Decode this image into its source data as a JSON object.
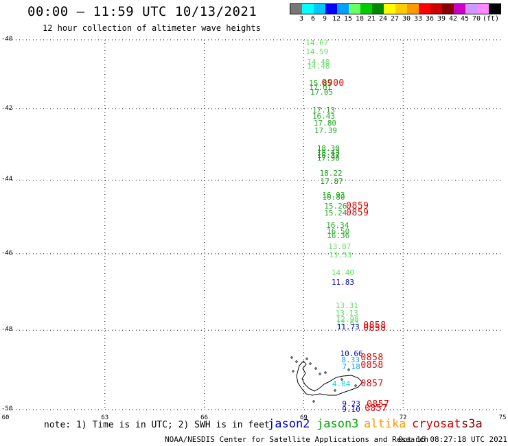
{
  "header": {
    "title": "00:00 – 11:59 UTC 10/13/2021",
    "subtitle": "12 hour collection of altimeter wave heights"
  },
  "legend": {
    "colors": [
      "#777777",
      "#00ffff",
      "#00c8ff",
      "#0000ff",
      "#00a0ff",
      "#66ff66",
      "#00cc00",
      "#008800",
      "#ffff00",
      "#ffcc00",
      "#ff9900",
      "#ff0000",
      "#cc0000",
      "#880000",
      "#cc00cc",
      "#cc99ff",
      "#ff88ff",
      "#000000"
    ],
    "labels": [
      "3",
      "6",
      "9",
      "12",
      "15",
      "18",
      "21",
      "24",
      "27",
      "30",
      "33",
      "36",
      "39",
      "42",
      "45",
      "70",
      "(ft)"
    ]
  },
  "axes": {
    "y_labels": [
      "-40",
      "-42",
      "-44",
      "-46",
      "-48",
      "-50"
    ],
    "x_labels": [
      "60",
      "63",
      "66",
      "69",
      "72",
      "75"
    ]
  },
  "observations": [
    {
      "v": "14.67",
      "lon": 69.06,
      "lat": -40.08,
      "c": "#66dd66"
    },
    {
      "v": "14.59",
      "lon": 69.06,
      "lat": -40.35,
      "c": "#66dd66"
    },
    {
      "v": "14.40",
      "lon": 69.1,
      "lat": -40.65,
      "c": "#66dd66"
    },
    {
      "v": "14.48",
      "lon": 69.1,
      "lat": -40.77,
      "c": "#66dd66"
    },
    {
      "v": "15.85",
      "lon": 69.16,
      "lat": -41.25,
      "c": "#22aa22"
    },
    {
      "v": "17.01",
      "lon": 69.16,
      "lat": -41.37,
      "c": "#22aa22"
    },
    {
      "v": "17.05",
      "lon": 69.2,
      "lat": -41.52,
      "c": "#22aa22"
    },
    {
      "v": "17.13",
      "lon": 69.26,
      "lat": -42.02,
      "c": "#22aa22"
    },
    {
      "v": "16.43",
      "lon": 69.26,
      "lat": -42.2,
      "c": "#22aa22"
    },
    {
      "v": "17.80",
      "lon": 69.3,
      "lat": -42.4,
      "c": "#22aa22"
    },
    {
      "v": "17.39",
      "lon": 69.32,
      "lat": -42.62,
      "c": "#22aa22"
    },
    {
      "v": "18.30",
      "lon": 69.4,
      "lat": -43.12,
      "c": "#119911"
    },
    {
      "v": "18.43",
      "lon": 69.4,
      "lat": -43.22,
      "c": "#119911"
    },
    {
      "v": "18.37",
      "lon": 69.4,
      "lat": -43.3,
      "c": "#119911"
    },
    {
      "v": "17.90",
      "lon": 69.4,
      "lat": -43.38,
      "c": "#119911"
    },
    {
      "v": "18.22",
      "lon": 69.48,
      "lat": -43.8,
      "c": "#119911"
    },
    {
      "v": "17.87",
      "lon": 69.5,
      "lat": -44.02,
      "c": "#119911"
    },
    {
      "v": "16.93",
      "lon": 69.56,
      "lat": -44.4,
      "c": "#22aa22"
    },
    {
      "v": "16.80",
      "lon": 69.56,
      "lat": -44.47,
      "c": "#22aa22"
    },
    {
      "v": "15.26",
      "lon": 69.62,
      "lat": -44.7,
      "c": "#22aa22"
    },
    {
      "v": "15.24",
      "lon": 69.62,
      "lat": -44.9,
      "c": "#22aa22"
    },
    {
      "v": "16.34",
      "lon": 69.68,
      "lat": -45.23,
      "c": "#22aa22"
    },
    {
      "v": "16.50",
      "lon": 69.7,
      "lat": -45.4,
      "c": "#22aa22"
    },
    {
      "v": "16.36",
      "lon": 69.7,
      "lat": -45.5,
      "c": "#22aa22"
    },
    {
      "v": "13.87",
      "lon": 69.74,
      "lat": -45.8,
      "c": "#66dd66"
    },
    {
      "v": "13.53",
      "lon": 69.76,
      "lat": -46.02,
      "c": "#66dd66"
    },
    {
      "v": "14.40",
      "lon": 69.84,
      "lat": -46.5,
      "c": "#66dd66"
    },
    {
      "v": "11.83",
      "lon": 69.84,
      "lat": -46.74,
      "c": "#0000cc"
    },
    {
      "v": "13.31",
      "lon": 69.96,
      "lat": -47.35,
      "c": "#66dd66"
    },
    {
      "v": "13.13",
      "lon": 69.96,
      "lat": -47.55,
      "c": "#66dd66"
    },
    {
      "v": "12.98",
      "lon": 69.98,
      "lat": -47.72,
      "c": "#66dd66"
    },
    {
      "v": "12.63",
      "lon": 69.98,
      "lat": -47.8,
      "c": "#66dd66"
    },
    {
      "v": "11.73",
      "lon": 70.0,
      "lat": -47.9,
      "c": "#0000cc"
    },
    {
      "v": "10.66",
      "lon": 70.1,
      "lat": -48.6,
      "c": "#0000cc"
    },
    {
      "v": "8.33",
      "lon": 70.14,
      "lat": -48.75,
      "c": "#00a0ff"
    },
    {
      "v": "7.18",
      "lon": 70.16,
      "lat": -48.93,
      "c": "#00a0ff"
    },
    {
      "v": "4.84",
      "lon": 69.86,
      "lat": -49.35,
      "c": "#00dddd"
    },
    {
      "v": "9.23",
      "lon": 70.16,
      "lat": -49.85,
      "c": "#0000cc"
    },
    {
      "v": "9.10",
      "lon": 70.16,
      "lat": -49.98,
      "c": "#0000cc"
    }
  ],
  "times": [
    {
      "t": "0900",
      "lon": 69.54,
      "lat": -41.25
    },
    {
      "t": "0859",
      "lon": 70.28,
      "lat": -44.7
    },
    {
      "t": "0859",
      "lon": 70.28,
      "lat": -44.9
    },
    {
      "t": "0858",
      "lon": 70.8,
      "lat": -47.88
    },
    {
      "t": "0858",
      "lon": 70.8,
      "lat": -47.95
    },
    {
      "t": "0858",
      "lon": 70.72,
      "lat": -48.7
    },
    {
      "t": "0858",
      "lon": 70.72,
      "lat": -48.88
    },
    {
      "t": "0857",
      "lon": 70.72,
      "lat": -49.35
    },
    {
      "t": "0857",
      "lon": 70.9,
      "lat": -49.86
    },
    {
      "t": "0857",
      "lon": 70.84,
      "lat": -49.97
    }
  ],
  "note": "note: 1) Time is in UTC; 2) SWH is in feet",
  "satellites": [
    {
      "name": "jason2",
      "color": "#0000cc"
    },
    {
      "name": "jason3",
      "color": "#00aa00"
    },
    {
      "name": "altika",
      "color": "#ff9900"
    },
    {
      "name": "cryosat",
      "color": "#cc0000"
    },
    {
      "name": "s3a",
      "color": "#880000"
    }
  ],
  "footer": {
    "left": "NOAA/NESDIS Center for Satellite Applications and Research",
    "right": "Oct 16 08:27:18 UTC 2021"
  }
}
